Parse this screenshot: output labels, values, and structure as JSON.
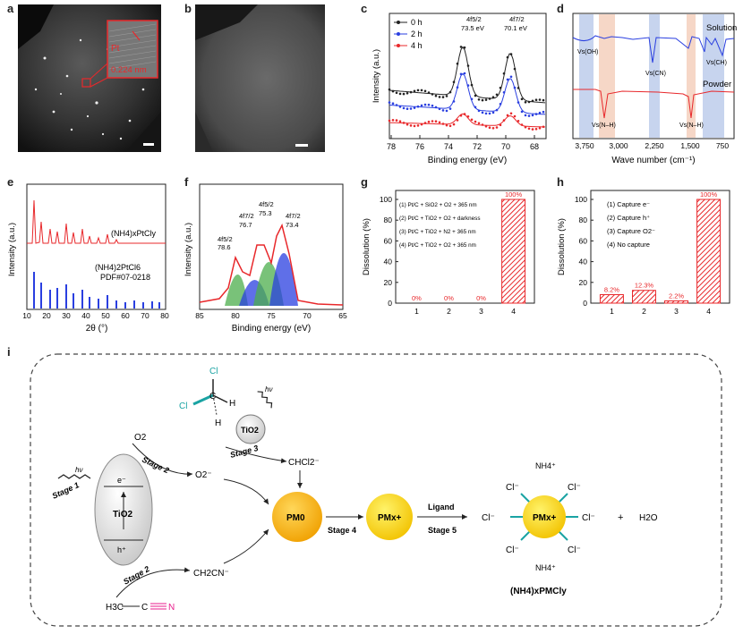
{
  "panel_labels": {
    "a": "a",
    "b": "b",
    "c": "c",
    "d": "d",
    "e": "e",
    "f": "f",
    "g": "g",
    "h": "h",
    "i": "i"
  },
  "panel_a": {
    "pt_label": "Pt",
    "spacing": "0.224 nm"
  },
  "colors": {
    "red": "#e8282b",
    "blue": "#2a3fe0",
    "green": "#4cae4c",
    "gold": "#f7b500",
    "teal": "#1aa3a3",
    "magenta": "#e81c8c"
  },
  "panel_c": {
    "type": "line",
    "xlabel": "Binding energy (eV)",
    "ylabel": "Intensity (a.u.)",
    "xticks": [
      "78",
      "76",
      "74",
      "72",
      "70",
      "68"
    ],
    "legend": [
      "0 h",
      "2 h",
      "4 h"
    ],
    "peak1_label": "4f5/2",
    "peak1_value": "73.5 eV",
    "peak2_label": "4f7/2",
    "peak2_value": "70.1 eV"
  },
  "panel_d": {
    "xlabel": "Wave number (cm⁻¹)",
    "xticks": [
      "3,750",
      "3,000",
      "2,250",
      "1,500",
      "750"
    ],
    "solution": "Solution",
    "powder": "Powder",
    "b1": "Vs(OH)",
    "b2": "Vs(CN)",
    "b3": "Vs(CH)",
    "b4": "Vs(N–H)",
    "b5": "Vs(N–H)"
  },
  "panel_e": {
    "xlabel": "2θ (°)",
    "ylabel": "Intensity (a.u.)",
    "xticks": [
      "10",
      "20",
      "30",
      "40",
      "50",
      "60",
      "70",
      "80"
    ],
    "sample": "(NH4)xPtCly",
    "ref1": "(NH4)2PtCl6",
    "ref2": "PDF#07-0218"
  },
  "panel_f": {
    "xlabel": "Binding energy (eV)",
    "ylabel": "Intensity (a.u.)",
    "xticks": [
      "85",
      "80",
      "75",
      "70",
      "65"
    ],
    "peaks": [
      {
        "label": "4f5/2",
        "value": "78.6"
      },
      {
        "label": "4f7/2",
        "value": "76.7"
      },
      {
        "label": "4f5/2",
        "value": "75.3"
      },
      {
        "label": "4f7/2",
        "value": "73.4"
      }
    ]
  },
  "chart_data": [
    {
      "type": "bar",
      "panel": "g",
      "ylabel": "Dissolution (%)",
      "categories": [
        "1",
        "2",
        "3",
        "4"
      ],
      "values": [
        0,
        0,
        0,
        100
      ],
      "data_labels": [
        "0%",
        "0%",
        "0%",
        "100%"
      ],
      "legend_text": [
        "(1) Pt/C + SiO2 + O2 + 365 nm",
        "(2) Pt/C + TiO2 + O2 + darkness",
        "(3) Pt/C + TiO2 + N2 + 365 nm",
        "(4) Pt/C + TiO2 + O2 + 365 nm"
      ],
      "ylim": [
        0,
        100
      ],
      "yticks": [
        "0",
        "20",
        "40",
        "60",
        "80",
        "100"
      ]
    },
    {
      "type": "bar",
      "panel": "h",
      "ylabel": "Dissolution (%)",
      "categories": [
        "1",
        "2",
        "3",
        "4"
      ],
      "values": [
        8.2,
        12.3,
        2.2,
        100
      ],
      "data_labels": [
        "8.2%",
        "12.3%",
        "2.2%",
        "100%"
      ],
      "legend_text": [
        "(1) Capture e⁻",
        "(2) Capture h⁺",
        "(3) Capture O2⁻",
        "(4) No capture"
      ],
      "ylim": [
        0,
        100
      ],
      "yticks": [
        "0",
        "20",
        "40",
        "60",
        "80",
        "100"
      ]
    }
  ],
  "panel_i": {
    "cl": "Cl",
    "h": "H",
    "c": "C",
    "tio2": "TiO2",
    "hv": "hν",
    "stage1": "Stage 1",
    "stage2": "Stage 2",
    "stage3": "Stage 3",
    "stage4": "Stage 4",
    "stage5": "Stage 5",
    "ligand": "Ligand",
    "o2": "O2",
    "o2rad": "O2⁻",
    "chcl2": "CHCl2⁻",
    "ch2cn": "CH2CN⁻",
    "h3c": "H3C",
    "cn_c": "C",
    "cn_n": "N",
    "eminus": "e⁻",
    "hplus": "h⁺",
    "pm0": "PM0",
    "pmx": "PMx+",
    "nh4": "NH4⁺",
    "clminus": "Cl⁻",
    "plus": "+",
    "h2o": "H2O",
    "product": "(NH4)xPMCly"
  }
}
